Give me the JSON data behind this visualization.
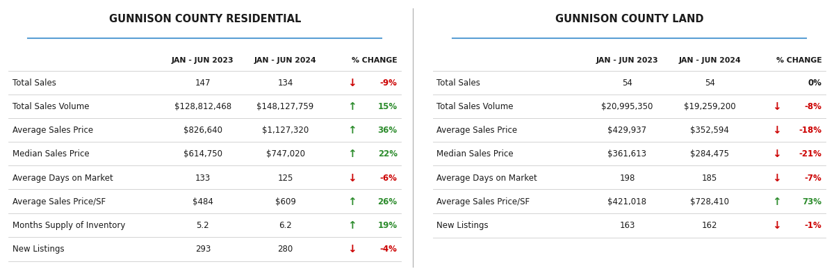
{
  "residential": {
    "title": "GUNNISON COUNTY RESIDENTIAL",
    "rows": [
      {
        "label": "Total Sales",
        "val2023": "147",
        "val2024": "134",
        "change": "-9%",
        "direction": "down"
      },
      {
        "label": "Total Sales Volume",
        "val2023": "$128,812,468",
        "val2024": "$148,127,759",
        "change": "15%",
        "direction": "up"
      },
      {
        "label": "Average Sales Price",
        "val2023": "$826,640",
        "val2024": "$1,127,320",
        "change": "36%",
        "direction": "up"
      },
      {
        "label": "Median Sales Price",
        "val2023": "$614,750",
        "val2024": "$747,020",
        "change": "22%",
        "direction": "up"
      },
      {
        "label": "Average Days on Market",
        "val2023": "133",
        "val2024": "125",
        "change": "-6%",
        "direction": "down"
      },
      {
        "label": "Average Sales Price/SF",
        "val2023": "$484",
        "val2024": "$609",
        "change": "26%",
        "direction": "up"
      },
      {
        "label": "Months Supply of Inventory",
        "val2023": "5.2",
        "val2024": "6.2",
        "change": "19%",
        "direction": "up"
      },
      {
        "label": "New Listings",
        "val2023": "293",
        "val2024": "280",
        "change": "-4%",
        "direction": "down"
      }
    ]
  },
  "land": {
    "title": "GUNNISON COUNTY LAND",
    "rows": [
      {
        "label": "Total Sales",
        "val2023": "54",
        "val2024": "54",
        "change": "0%",
        "direction": "neutral"
      },
      {
        "label": "Total Sales Volume",
        "val2023": "$20,995,350",
        "val2024": "$19,259,200",
        "change": "-8%",
        "direction": "down"
      },
      {
        "label": "Average Sales Price",
        "val2023": "$429,937",
        "val2024": "$352,594",
        "change": "-18%",
        "direction": "down"
      },
      {
        "label": "Median Sales Price",
        "val2023": "$361,613",
        "val2024": "$284,475",
        "change": "-21%",
        "direction": "down"
      },
      {
        "label": "Average Days on Market",
        "val2023": "198",
        "val2024": "185",
        "change": "-7%",
        "direction": "down"
      },
      {
        "label": "Average Sales Price/SF",
        "val2023": "$421,018",
        "val2024": "$728,410",
        "change": "73%",
        "direction": "up"
      },
      {
        "label": "New Listings",
        "val2023": "163",
        "val2024": "162",
        "change": "-1%",
        "direction": "down"
      }
    ]
  },
  "bg_color": "#ffffff",
  "title_color": "#1a1a1a",
  "header_color": "#1a1a1a",
  "label_color": "#1a1a1a",
  "value_color": "#1a1a1a",
  "up_color": "#2d8c2d",
  "down_color": "#cc0000",
  "neutral_color": "#1a1a1a",
  "line_color": "#cccccc",
  "title_underline_color": "#5a9fd4",
  "divider_color": "#aaaaaa"
}
